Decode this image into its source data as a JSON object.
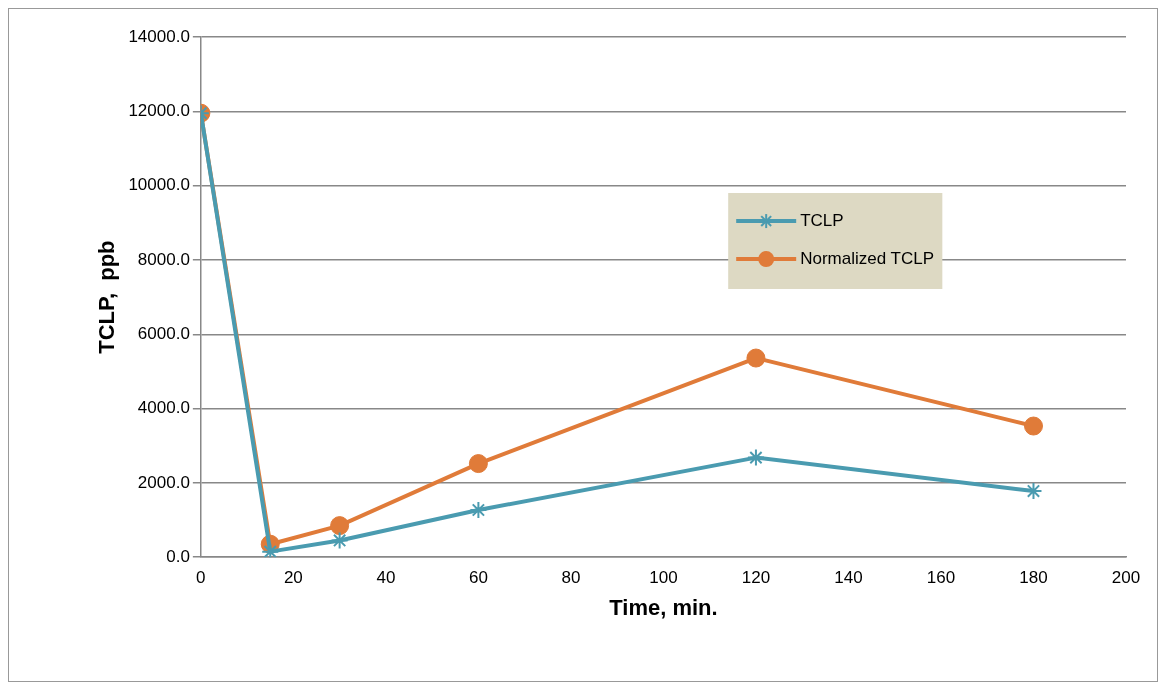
{
  "chart_data": {
    "type": "line",
    "xlabel": "Time, min.",
    "ylabel": "TCLP,  ppb",
    "xlim": [
      0,
      200
    ],
    "xticks": [
      0,
      20,
      40,
      60,
      80,
      100,
      120,
      140,
      160,
      180,
      200
    ],
    "ylim": [
      0,
      14000
    ],
    "yticks": [
      {
        "value": 0,
        "label": "0.0"
      },
      {
        "value": 2000,
        "label": "2000.0"
      },
      {
        "value": 4000,
        "label": "4000.0"
      },
      {
        "value": 6000,
        "label": "6000.0"
      },
      {
        "value": 8000,
        "label": "8000.0"
      },
      {
        "value": 10000,
        "label": "10000.0"
      },
      {
        "value": 12000,
        "label": "12000.0"
      },
      {
        "value": 14000,
        "label": "14000.0"
      }
    ],
    "grid": "y",
    "legend": "right",
    "x": [
      0,
      15,
      30,
      60,
      120,
      180
    ],
    "series": [
      {
        "name": "TCLP",
        "color": "#4a9bb0",
        "marker": "cross",
        "values": [
          11950,
          150,
          450,
          1270,
          2680,
          1780
        ]
      },
      {
        "name": "Normalized TCLP",
        "color": "#e07b39",
        "marker": "circle",
        "values": [
          11950,
          350,
          850,
          2520,
          5360,
          3530
        ]
      }
    ]
  }
}
